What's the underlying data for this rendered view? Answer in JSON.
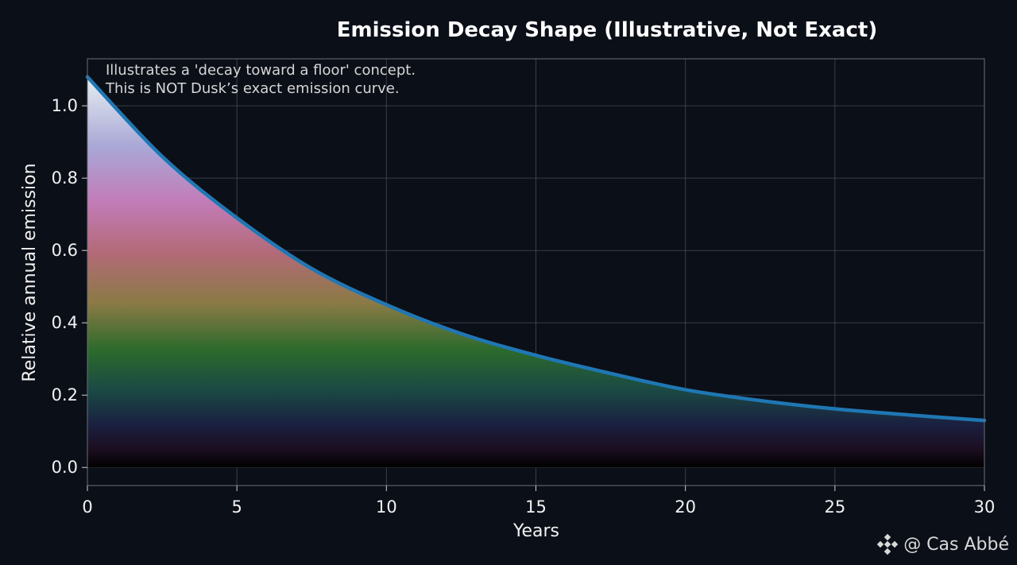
{
  "chart_data": {
    "type": "area",
    "title": "Emission Decay Shape (Illustrative, Not Exact)",
    "xlabel": "Years",
    "ylabel": "Relative annual emission",
    "xlim": [
      0,
      30
    ],
    "ylim": [
      -0.05,
      1.13
    ],
    "xticks": [
      0,
      5,
      10,
      15,
      20,
      25,
      30
    ],
    "yticks": [
      0.0,
      0.2,
      0.4,
      0.6,
      0.8,
      1.0
    ],
    "xtick_labels": [
      "0",
      "5",
      "10",
      "15",
      "20",
      "25",
      "30"
    ],
    "ytick_labels": [
      "0.0",
      "0.2",
      "0.4",
      "0.6",
      "0.8",
      "1.0"
    ],
    "grid": true,
    "annotations": [
      "Illustrates a 'decay toward a floor' concept.",
      "This is NOT Dusk’s exact emission curve."
    ],
    "x": [
      0,
      2.5,
      5,
      7.5,
      10,
      12.5,
      15,
      17.5,
      20,
      22.5,
      25,
      27.5,
      30
    ],
    "series": [
      {
        "values": [
          1.08,
          0.86,
          0.69,
          0.55,
          0.45,
          0.37,
          0.31,
          0.26,
          0.215,
          0.185,
          0.162,
          0.145,
          0.13
        ],
        "color": "#1f77b4"
      }
    ]
  },
  "watermark": {
    "text": "@ Cas Abbé",
    "icon": "binance-logo-icon"
  },
  "colors": {
    "background": "#0b0f18",
    "grid": "#3a3f4b",
    "line": "#1f77b4"
  }
}
